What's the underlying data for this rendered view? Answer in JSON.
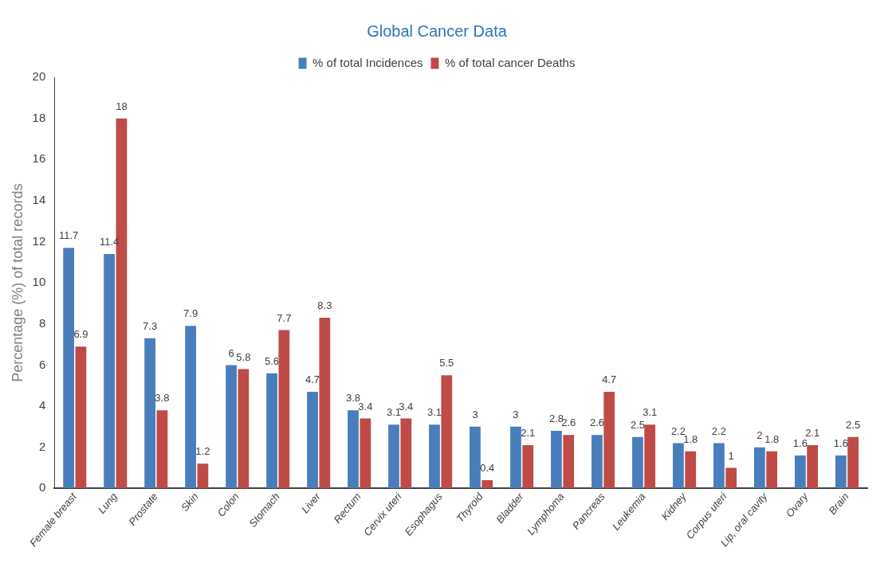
{
  "chart_data": {
    "type": "bar",
    "title": "Global Cancer Data",
    "ylabel": "Percentage (%) of total records",
    "categories": [
      "Female breast",
      "Lung",
      "Prostate",
      "Skin",
      "Colon",
      "Stomach",
      "Liver",
      "Rectum",
      "Cervix uteri",
      "Esophagus",
      "Thyroid",
      "Bladder",
      "Lymphoma",
      "Pancreas",
      "Leukemia",
      "Kidney",
      "Corpus uteri",
      "Lip, oral cavity",
      "Ovary",
      "Brain"
    ],
    "series": [
      {
        "name": "% of total Incidences",
        "color": "#4a7ebb",
        "values": [
          11.7,
          11.4,
          7.3,
          7.9,
          6,
          5.6,
          4.7,
          3.8,
          3.1,
          3.1,
          3,
          3,
          2.8,
          2.6,
          2.5,
          2.2,
          2.2,
          2,
          1.6,
          1.6
        ]
      },
      {
        "name": "% of total cancer Deaths",
        "color": "#be4b48",
        "values": [
          6.9,
          18,
          3.8,
          1.2,
          5.8,
          7.7,
          8.3,
          3.4,
          3.4,
          5.5,
          0.4,
          2.1,
          2.6,
          4.7,
          3.1,
          1.8,
          1,
          1.8,
          2.1,
          2.5
        ]
      }
    ],
    "ylim": [
      0,
      20
    ],
    "yticks": [
      0,
      2,
      4,
      6,
      8,
      10,
      12,
      14,
      16,
      18,
      20
    ],
    "grid": false,
    "legend": "top",
    "data_labels": true
  }
}
